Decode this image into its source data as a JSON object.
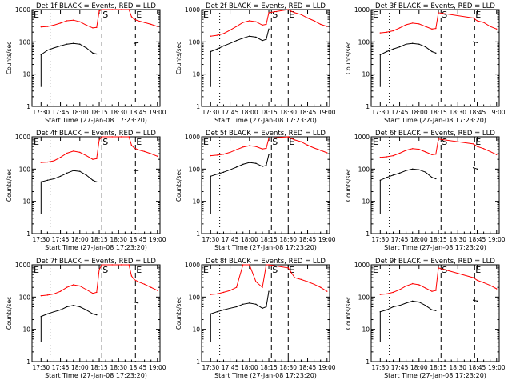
{
  "figure": {
    "xlabel": "Start Time (27-Jan-08 17:23:20)",
    "ylabel": "Counts/sec",
    "x_tick_labels": [
      "17:30",
      "17:45",
      "18:00",
      "18:15",
      "18:30",
      "18:45",
      "19:00"
    ],
    "y_tick_labels": [
      "1",
      "10",
      "100",
      "1000"
    ],
    "colors": {
      "events": "#000000",
      "lld": "#ff0000",
      "axes": "#000000",
      "background": "#ffffff"
    }
  },
  "chart_data": [
    {
      "type": "line",
      "title": "Det 1f BLACK = Events, RED = LLD",
      "xlabel": "Start Time (27-Jan-08 17:23:20)",
      "ylabel": "Counts/sec",
      "xlim": [
        "17:23",
        "19:02"
      ],
      "ylim": [
        1,
        1000
      ],
      "yscale": "log",
      "x": [
        "17:30",
        "17:35",
        "17:40",
        "17:45",
        "17:50",
        "17:55",
        "18:00",
        "18:05",
        "18:10",
        "18:13",
        "18:15",
        "18:17",
        "18:25",
        "18:32",
        "18:38",
        "18:40",
        "18:42",
        "18:45",
        "18:50",
        "18:55",
        "19:00"
      ],
      "series": [
        {
          "name": "Events",
          "values": [
            40,
            55,
            65,
            75,
            85,
            90,
            85,
            65,
            45,
            42,
            null,
            null,
            null,
            null,
            null,
            null,
            90,
            95,
            null,
            null,
            null
          ]
        },
        {
          "name": "LLD",
          "values": [
            290,
            300,
            330,
            380,
            450,
            470,
            420,
            330,
            270,
            280,
            900,
            1000,
            1000,
            1000,
            1000,
            600,
            500,
            450,
            400,
            350,
            300
          ]
        }
      ],
      "annotations": [
        {
          "text": "S",
          "x": "18:17"
        },
        {
          "text": "E",
          "x": "18:43"
        },
        {
          "text": "E",
          "x": "17:23"
        }
      ]
    },
    {
      "type": "line",
      "title": "Det 2f BLACK = Events, RED = LLD",
      "xlabel": "Start Time (27-Jan-08 17:23:20)",
      "ylabel": "Counts/sec",
      "xlim": [
        "17:23",
        "19:02"
      ],
      "ylim": [
        1,
        1000
      ],
      "yscale": "log",
      "x": [
        "17:30",
        "17:35",
        "17:40",
        "17:45",
        "17:50",
        "17:55",
        "18:00",
        "18:05",
        "18:10",
        "18:13",
        "18:15",
        "18:30",
        "18:32",
        "18:35",
        "18:40",
        "18:45",
        "18:50",
        "18:55",
        "19:00"
      ],
      "series": [
        {
          "name": "Events",
          "values": [
            50,
            60,
            75,
            90,
            110,
            130,
            150,
            140,
            110,
            120,
            250,
            null,
            null,
            null,
            null,
            null,
            null,
            null,
            null
          ]
        },
        {
          "name": "LLD",
          "values": [
            150,
            160,
            180,
            230,
            300,
            400,
            450,
            420,
            330,
            350,
            800,
            1000,
            900,
            800,
            700,
            550,
            450,
            350,
            300
          ]
        }
      ],
      "annotations": [
        {
          "text": "S",
          "x": "18:17"
        },
        {
          "text": "E",
          "x": "18:30"
        },
        {
          "text": "E",
          "x": "17:23"
        }
      ]
    },
    {
      "type": "line",
      "title": "Det 3f BLACK = Events, RED = LLD",
      "xlabel": "Start Time (27-Jan-08 17:23:20)",
      "ylabel": "Counts/sec",
      "xlim": [
        "17:23",
        "19:02"
      ],
      "ylim": [
        1,
        1000
      ],
      "yscale": "log",
      "x": [
        "17:30",
        "17:35",
        "17:40",
        "17:45",
        "17:50",
        "17:55",
        "18:00",
        "18:05",
        "18:10",
        "18:13",
        "18:15",
        "18:42",
        "18:45",
        "18:50",
        "18:55",
        "19:00"
      ],
      "series": [
        {
          "name": "Events",
          "values": [
            40,
            50,
            60,
            70,
            85,
            90,
            85,
            70,
            50,
            45,
            null,
            100,
            95,
            null,
            null,
            null
          ]
        },
        {
          "name": "LLD",
          "values": [
            190,
            200,
            220,
            270,
            340,
            380,
            360,
            300,
            250,
            260,
            800,
            550,
            450,
            400,
            300,
            250
          ]
        }
      ],
      "annotations": [
        {
          "text": "S",
          "x": "18:17"
        },
        {
          "text": "E",
          "x": "18:43"
        },
        {
          "text": "E",
          "x": "17:23"
        }
      ]
    },
    {
      "type": "line",
      "title": "Det 4f BLACK = Events, RED = LLD",
      "xlabel": "Start Time (27-Jan-08 17:23:20)",
      "ylabel": "Counts/sec",
      "xlim": [
        "17:23",
        "19:02"
      ],
      "ylim": [
        1,
        1000
      ],
      "yscale": "log",
      "x": [
        "17:30",
        "17:35",
        "17:40",
        "17:45",
        "17:50",
        "17:55",
        "18:00",
        "18:05",
        "18:10",
        "18:13",
        "18:15",
        "18:17",
        "18:25",
        "18:32",
        "18:38",
        "18:40",
        "18:42",
        "18:45",
        "18:50",
        "18:55",
        "19:00"
      ],
      "series": [
        {
          "name": "Events",
          "values": [
            40,
            45,
            50,
            60,
            75,
            90,
            85,
            65,
            45,
            40,
            null,
            null,
            null,
            null,
            null,
            null,
            90,
            90,
            null,
            null,
            null
          ]
        },
        {
          "name": "LLD",
          "values": [
            160,
            165,
            180,
            230,
            310,
            360,
            330,
            260,
            200,
            210,
            800,
            1000,
            1000,
            1000,
            1000,
            550,
            450,
            400,
            350,
            300,
            250
          ]
        }
      ],
      "annotations": [
        {
          "text": "S",
          "x": "18:17"
        },
        {
          "text": "E",
          "x": "18:43"
        },
        {
          "text": "E",
          "x": "17:23"
        }
      ]
    },
    {
      "type": "line",
      "title": "Det 5f BLACK = Events, RED = LLD",
      "xlabel": "Start Time (27-Jan-08 17:23:20)",
      "ylabel": "Counts/sec",
      "xlim": [
        "17:23",
        "19:02"
      ],
      "ylim": [
        1,
        1000
      ],
      "yscale": "log",
      "x": [
        "17:30",
        "17:35",
        "17:40",
        "17:45",
        "17:50",
        "17:55",
        "18:00",
        "18:05",
        "18:10",
        "18:13",
        "18:15",
        "18:30",
        "18:32",
        "18:35",
        "18:40",
        "18:45",
        "18:50",
        "18:55",
        "19:00"
      ],
      "series": [
        {
          "name": "Events",
          "values": [
            60,
            70,
            80,
            95,
            115,
            140,
            160,
            150,
            120,
            130,
            280,
            null,
            null,
            null,
            null,
            null,
            null,
            null,
            null
          ]
        },
        {
          "name": "LLD",
          "values": [
            260,
            270,
            290,
            330,
            400,
            480,
            530,
            500,
            420,
            440,
            900,
            1000,
            900,
            800,
            700,
            550,
            450,
            380,
            320
          ]
        }
      ],
      "annotations": [
        {
          "text": "S",
          "x": "18:17"
        },
        {
          "text": "E",
          "x": "18:30"
        },
        {
          "text": "E",
          "x": "17:23"
        }
      ]
    },
    {
      "type": "line",
      "title": "Det 6f BLACK = Events, RED = LLD",
      "xlabel": "Start Time (27-Jan-08 17:23:20)",
      "ylabel": "Counts/sec",
      "xlim": [
        "17:23",
        "19:02"
      ],
      "ylim": [
        1,
        1000
      ],
      "yscale": "log",
      "x": [
        "17:30",
        "17:35",
        "17:40",
        "17:45",
        "17:50",
        "17:55",
        "18:00",
        "18:05",
        "18:10",
        "18:13",
        "18:15",
        "18:42",
        "18:45",
        "18:50",
        "18:55",
        "19:00"
      ],
      "series": [
        {
          "name": "Events",
          "values": [
            45,
            55,
            65,
            75,
            90,
            100,
            95,
            80,
            55,
            50,
            null,
            110,
            100,
            null,
            null,
            null
          ]
        },
        {
          "name": "LLD",
          "values": [
            230,
            240,
            260,
            310,
            380,
            430,
            410,
            340,
            280,
            290,
            850,
            600,
            500,
            430,
            350,
            280
          ]
        }
      ],
      "annotations": [
        {
          "text": "S",
          "x": "18:17"
        },
        {
          "text": "E",
          "x": "18:43"
        },
        {
          "text": "E",
          "x": "17:23"
        }
      ]
    },
    {
      "type": "line",
      "title": "Det 7f BLACK = Events, RED = LLD",
      "xlabel": "Start Time (27-Jan-08 17:23:20)",
      "ylabel": "Counts/sec",
      "xlim": [
        "17:23",
        "19:02"
      ],
      "ylim": [
        1,
        1000
      ],
      "yscale": "log",
      "x": [
        "17:30",
        "17:35",
        "17:40",
        "17:45",
        "17:50",
        "17:55",
        "18:00",
        "18:05",
        "18:10",
        "18:13",
        "18:15",
        "18:17",
        "18:25",
        "18:32",
        "18:38",
        "18:40",
        "18:42",
        "18:45",
        "18:50",
        "18:55",
        "19:00"
      ],
      "series": [
        {
          "name": "Events",
          "values": [
            25,
            30,
            35,
            40,
            50,
            55,
            50,
            40,
            30,
            28,
            null,
            null,
            null,
            null,
            null,
            null,
            70,
            65,
            null,
            null,
            null
          ]
        },
        {
          "name": "LLD",
          "values": [
            110,
            115,
            125,
            150,
            200,
            240,
            220,
            170,
            130,
            140,
            700,
            1000,
            1000,
            1000,
            1000,
            450,
            350,
            300,
            250,
            200,
            160
          ]
        }
      ],
      "annotations": [
        {
          "text": "S",
          "x": "18:17"
        },
        {
          "text": "E",
          "x": "18:43"
        },
        {
          "text": "E",
          "x": "17:23"
        }
      ]
    },
    {
      "type": "line",
      "title": "Det 8f BLACK = Events, RED = LLD",
      "xlabel": "Start Time (27-Jan-08 17:23:20)",
      "ylabel": "Counts/sec",
      "xlim": [
        "17:23",
        "19:02"
      ],
      "ylim": [
        1,
        1000
      ],
      "yscale": "log",
      "x": [
        "17:30",
        "17:35",
        "17:40",
        "17:45",
        "17:50",
        "17:55",
        "18:00",
        "18:05",
        "18:10",
        "18:13",
        "18:15",
        "18:30",
        "18:32",
        "18:35",
        "18:40",
        "18:45",
        "18:50",
        "18:55",
        "19:00"
      ],
      "series": [
        {
          "name": "Events",
          "values": [
            30,
            35,
            40,
            45,
            50,
            60,
            65,
            60,
            45,
            50,
            150,
            null,
            null,
            null,
            null,
            null,
            null,
            null,
            null
          ]
        },
        {
          "name": "LLD",
          "values": [
            120,
            125,
            140,
            160,
            200,
            1000,
            1000,
            300,
            200,
            1000,
            1000,
            800,
            600,
            400,
            350,
            300,
            250,
            200,
            150
          ]
        }
      ],
      "annotations": [
        {
          "text": "S",
          "x": "18:17"
        },
        {
          "text": "E",
          "x": "18:30"
        },
        {
          "text": "E",
          "x": "17:23"
        }
      ]
    },
    {
      "type": "line",
      "title": "Det 9f BLACK = Events, RED = LLD",
      "xlabel": "Start Time (27-Jan-08 17:23:20)",
      "ylabel": "Counts/sec",
      "xlim": [
        "17:23",
        "19:02"
      ],
      "ylim": [
        1,
        1000
      ],
      "yscale": "log",
      "x": [
        "17:30",
        "17:35",
        "17:40",
        "17:45",
        "17:50",
        "17:55",
        "18:00",
        "18:05",
        "18:10",
        "18:13",
        "18:15",
        "18:42",
        "18:45",
        "18:50",
        "18:55",
        "19:00"
      ],
      "series": [
        {
          "name": "Events",
          "values": [
            35,
            40,
            50,
            55,
            65,
            75,
            70,
            55,
            40,
            38,
            null,
            80,
            75,
            null,
            null,
            null
          ]
        },
        {
          "name": "LLD",
          "values": [
            120,
            125,
            140,
            170,
            220,
            260,
            240,
            190,
            150,
            160,
            800,
            400,
            330,
            280,
            230,
            180
          ]
        }
      ],
      "annotations": [
        {
          "text": "S",
          "x": "18:17"
        },
        {
          "text": "E",
          "x": "18:43"
        },
        {
          "text": "E",
          "x": "17:23"
        }
      ]
    }
  ]
}
